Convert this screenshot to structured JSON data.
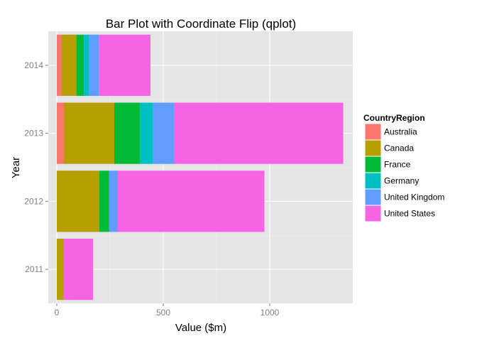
{
  "chart_data": {
    "type": "bar",
    "orientation": "horizontal",
    "stacked": true,
    "title": "Bar Plot with Coordinate Flip (qplot)",
    "xlabel": "Value ($m)",
    "ylabel": "Year",
    "xlim": [
      -40,
      1390
    ],
    "x_ticks": [
      0,
      500,
      1000
    ],
    "x_tick_labels": [
      "0",
      "500",
      "1000"
    ],
    "categories": [
      "2011",
      "2012",
      "2013",
      "2014"
    ],
    "grid": true,
    "legend": {
      "title": "CountryRegion",
      "position": "right"
    },
    "series": [
      {
        "name": "Australia",
        "color": "#F8766D",
        "values": [
          0,
          0,
          35,
          22
        ]
      },
      {
        "name": "Canada",
        "color": "#B79F00",
        "values": [
          30,
          200,
          235,
          70
        ]
      },
      {
        "name": "France",
        "color": "#00BA38",
        "values": [
          0,
          45,
          120,
          35
        ]
      },
      {
        "name": "Germany",
        "color": "#00BFC4",
        "values": [
          0,
          0,
          60,
          25
        ]
      },
      {
        "name": "United Kingdom",
        "color": "#619CFF",
        "values": [
          0,
          40,
          100,
          45
        ]
      },
      {
        "name": "United States",
        "color": "#F564E3",
        "values": [
          140,
          690,
          795,
          243
        ]
      }
    ]
  }
}
